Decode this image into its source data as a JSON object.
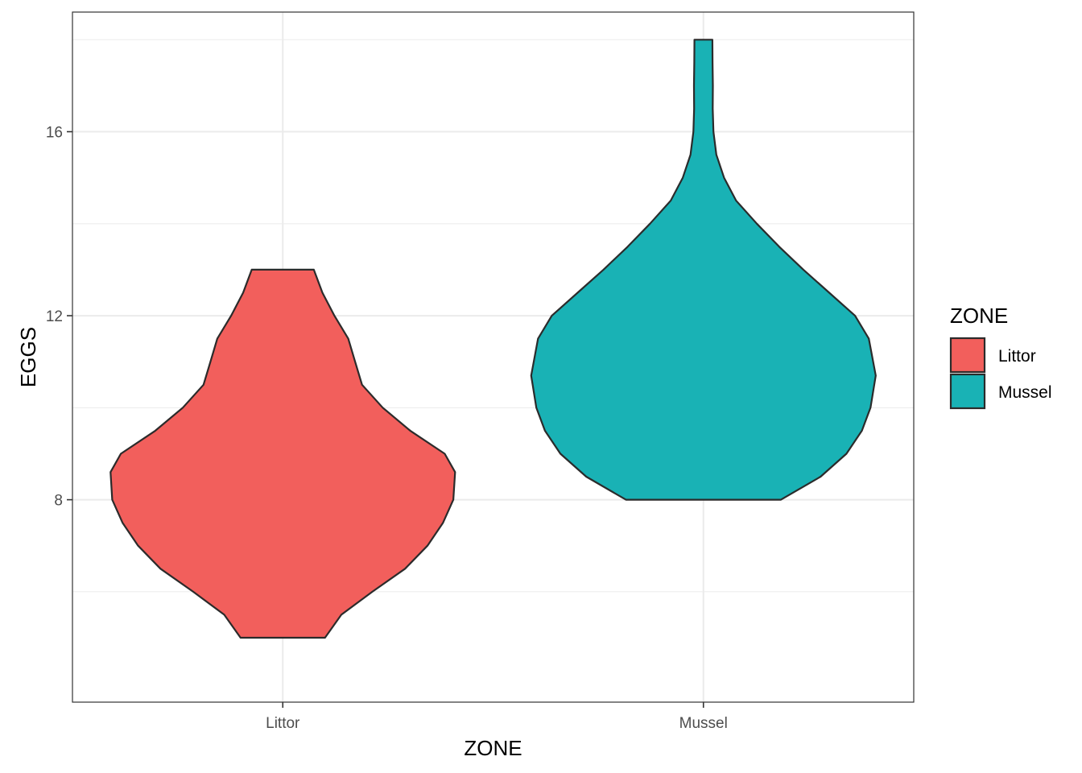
{
  "chart_data": {
    "type": "violin",
    "xlabel": "ZONE",
    "ylabel": "EGGS",
    "categories": [
      "Littor",
      "Mussel"
    ],
    "y_ticks": [
      8,
      12,
      16
    ],
    "ylim": [
      3.6,
      18.6
    ],
    "grid": true,
    "legend": {
      "title": "ZONE",
      "position": "right",
      "entries": [
        {
          "label": "Littor",
          "color": "#F25F5C"
        },
        {
          "label": "Mussel",
          "color": "#19B2B5"
        }
      ]
    },
    "series": [
      {
        "category": "Littor",
        "color": "#F25F5C",
        "min": 5,
        "max": 13,
        "profile": [
          [
            5.0,
            0.245
          ],
          [
            5.5,
            0.34
          ],
          [
            6.0,
            0.52
          ],
          [
            6.5,
            0.71
          ],
          [
            7.0,
            0.84
          ],
          [
            7.5,
            0.93
          ],
          [
            8.0,
            0.99
          ],
          [
            8.6,
            1.0
          ],
          [
            9.0,
            0.94
          ],
          [
            9.5,
            0.74
          ],
          [
            10.0,
            0.58
          ],
          [
            10.5,
            0.46
          ],
          [
            11.0,
            0.42
          ],
          [
            11.5,
            0.38
          ],
          [
            12.0,
            0.3
          ],
          [
            12.5,
            0.23
          ],
          [
            13.0,
            0.18
          ]
        ]
      },
      {
        "category": "Mussel",
        "color": "#19B2B5",
        "min": 8,
        "max": 18,
        "profile": [
          [
            8.0,
            0.45
          ],
          [
            8.5,
            0.68
          ],
          [
            9.0,
            0.83
          ],
          [
            9.5,
            0.92
          ],
          [
            10.0,
            0.97
          ],
          [
            10.7,
            1.0
          ],
          [
            11.5,
            0.96
          ],
          [
            12.0,
            0.88
          ],
          [
            12.5,
            0.73
          ],
          [
            13.0,
            0.58
          ],
          [
            13.5,
            0.44
          ],
          [
            14.0,
            0.31
          ],
          [
            14.5,
            0.19
          ],
          [
            15.0,
            0.12
          ],
          [
            15.5,
            0.075
          ],
          [
            16.0,
            0.058
          ],
          [
            16.5,
            0.054
          ],
          [
            17.0,
            0.055
          ],
          [
            17.5,
            0.053
          ],
          [
            18.0,
            0.052
          ]
        ]
      }
    ]
  }
}
